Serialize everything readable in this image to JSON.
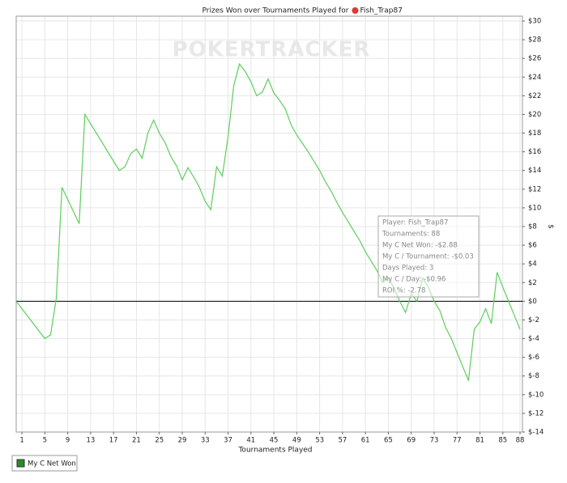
{
  "chart_data": {
    "type": "line",
    "title": "Prizes Won over Tournaments Played for",
    "player": "Fish_Trap87",
    "watermark": "POKERTRACKER",
    "x_label": "Tournaments Played",
    "y_label": "$",
    "xlim": [
      0,
      88
    ],
    "xticks": [
      1,
      5,
      9,
      13,
      17,
      21,
      25,
      29,
      33,
      37,
      41,
      45,
      49,
      53,
      57,
      61,
      65,
      69,
      73,
      77,
      81,
      85,
      88
    ],
    "ylim": [
      -14,
      30
    ],
    "yticks": [
      {
        "value": 30,
        "label": "$30"
      },
      {
        "value": 28,
        "label": "$28"
      },
      {
        "value": 26,
        "label": "$26"
      },
      {
        "value": 24,
        "label": "$24"
      },
      {
        "value": 22,
        "label": "$22"
      },
      {
        "value": 20,
        "label": "$20"
      },
      {
        "value": 18,
        "label": "$18"
      },
      {
        "value": 16,
        "label": "$16"
      },
      {
        "value": 14,
        "label": "$14"
      },
      {
        "value": 12,
        "label": "$12"
      },
      {
        "value": 10,
        "label": "$10"
      },
      {
        "value": 8,
        "label": "$8"
      },
      {
        "value": 6,
        "label": "$6"
      },
      {
        "value": 4,
        "label": "$4"
      },
      {
        "value": 2,
        "label": "$2"
      },
      {
        "value": 0,
        "label": "$0"
      },
      {
        "value": -2,
        "label": "$-2"
      },
      {
        "value": -4,
        "label": "$-4"
      },
      {
        "value": -6,
        "label": "$-6"
      },
      {
        "value": -8,
        "label": "$-8"
      },
      {
        "value": -10,
        "label": "$-10"
      },
      {
        "value": -12,
        "label": "$-12"
      },
      {
        "value": -14,
        "label": "$-14"
      }
    ],
    "grid": true,
    "x": [
      0,
      5,
      6,
      7,
      8,
      11,
      12,
      18,
      19,
      20,
      21,
      22,
      23,
      24,
      25,
      26,
      27,
      28,
      29,
      30,
      31,
      32,
      33,
      34,
      35,
      36,
      37,
      38,
      39,
      40,
      41,
      42,
      43,
      44,
      45,
      46,
      47,
      48,
      49,
      50,
      51,
      52,
      53,
      54,
      55,
      56,
      57,
      58,
      59,
      60,
      61,
      62,
      63,
      64,
      65,
      66,
      67,
      68,
      69,
      70,
      71,
      72,
      73,
      74,
      75,
      76,
      77,
      78,
      79,
      80,
      81,
      82,
      83,
      84,
      85,
      86,
      87,
      88
    ],
    "series": [
      {
        "name": "My C Net Won",
        "color": "#5ccf5c",
        "values": [
          0,
          -4,
          -3.6,
          0.3,
          12.2,
          8.3,
          20,
          14,
          14.4,
          15.8,
          16.3,
          15.3,
          18,
          19.4,
          18,
          17,
          15.5,
          14.5,
          13,
          14.3,
          13.3,
          12.2,
          10.7,
          9.8,
          14.4,
          13.4,
          17.6,
          23.1,
          25.4,
          24.6,
          23.5,
          22,
          22.4,
          23.8,
          22.3,
          21.5,
          20.6,
          18.9,
          17.8,
          16.9,
          16,
          15,
          14,
          12.8,
          11.8,
          10.6,
          9.5,
          8.5,
          7.5,
          6.5,
          5.3,
          4.3,
          3.3,
          2,
          2.5,
          1.4,
          0,
          -1.2,
          0.8,
          0,
          2.5,
          1.5,
          0,
          -1,
          -2.8,
          -4,
          -5.5,
          -7,
          -8.5,
          -3,
          -2.2,
          -0.8,
          -2.4,
          3.1,
          1.5,
          0,
          -1.5,
          -3
        ]
      }
    ],
    "legend": "bottom-left",
    "tooltip": [
      "Player: Fish_Trap87",
      "Tournaments: 88",
      "My C Net Won: -$2.88",
      "My C / Tournament: -$0.03",
      "Days Played: 3",
      "My C / Day: -$0.96",
      "ROI %: -2.78"
    ]
  }
}
